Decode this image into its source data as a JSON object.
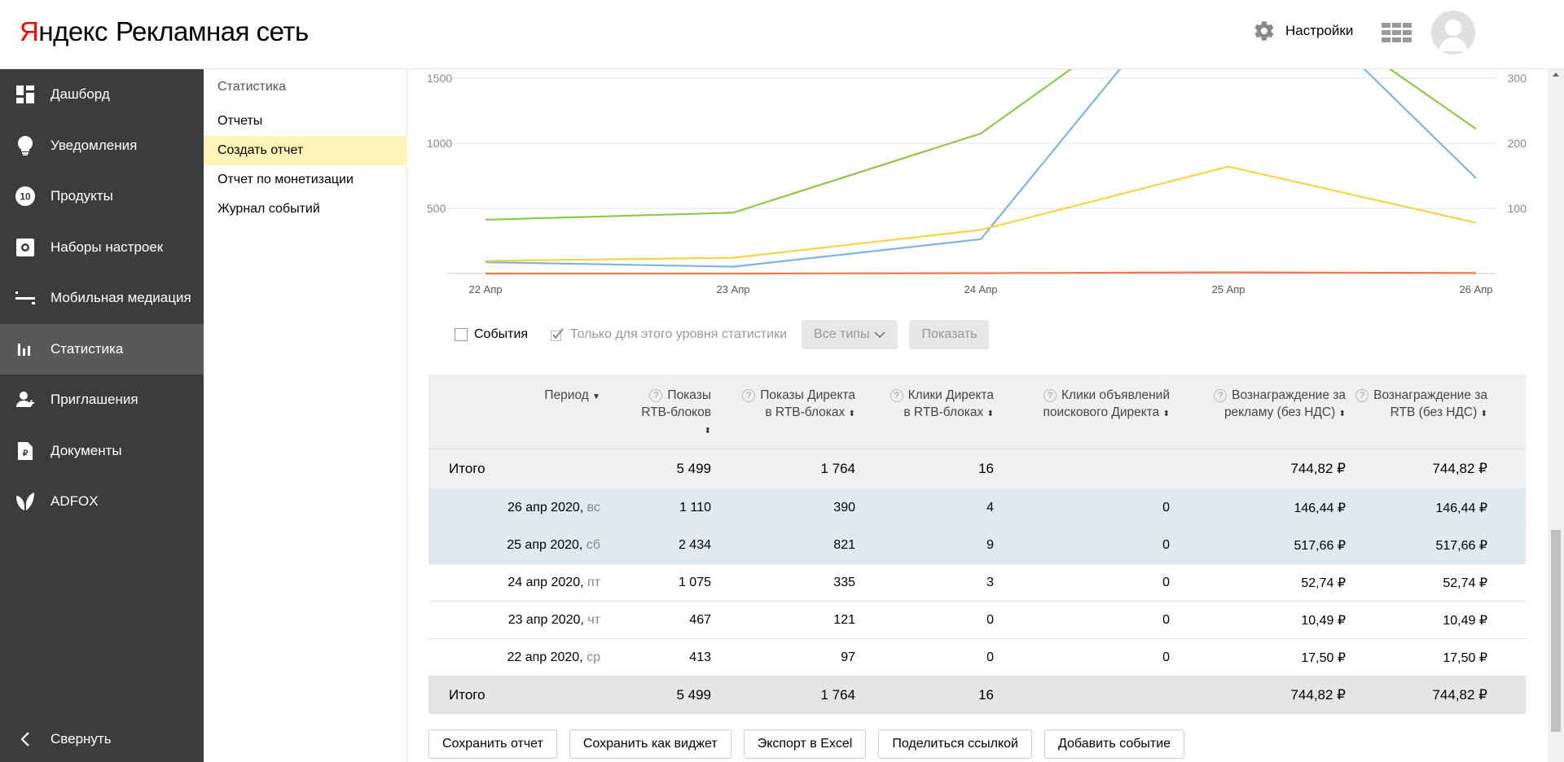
{
  "header": {
    "logo_brand": "Яндекс",
    "logo_product": "Рекламная сеть",
    "settings_label": "Настройки"
  },
  "sidebar": {
    "items": [
      {
        "label": "Дашборд",
        "icon": "dashboard-icon",
        "active": false
      },
      {
        "label": "Уведомления",
        "icon": "bulb-icon",
        "active": false
      },
      {
        "label": "Продукты",
        "icon": "products-icon",
        "active": false
      },
      {
        "label": "Наборы настроек",
        "icon": "settings-set-icon",
        "active": false
      },
      {
        "label": "Мобильная медиация",
        "icon": "mediation-icon",
        "active": false
      },
      {
        "label": "Статистика",
        "icon": "stats-icon",
        "active": true
      },
      {
        "label": "Приглашения",
        "icon": "invite-icon",
        "active": false
      },
      {
        "label": "Документы",
        "icon": "document-icon",
        "active": false
      },
      {
        "label": "ADFOX",
        "icon": "adfox-icon",
        "active": false
      }
    ],
    "products_badge": "10",
    "collapse_label": "Свернуть"
  },
  "subnav": {
    "title": "Статистика",
    "items": [
      {
        "label": "Отчеты",
        "active": false
      },
      {
        "label": "Создать отчет",
        "active": true
      },
      {
        "label": "Отчет по монетизации",
        "active": false
      },
      {
        "label": "Журнал событий",
        "active": false
      }
    ]
  },
  "chart_data": {
    "type": "line",
    "categories": [
      "22 Апр",
      "23 Апр",
      "24 Апр",
      "25 Апр",
      "26 Апр"
    ],
    "y_left_ticks": [
      "500",
      "1000",
      "1500"
    ],
    "y_right_ticks": [
      "100",
      "200",
      "300"
    ],
    "series": [
      {
        "color": "#8cc84b",
        "axis": "left",
        "values": [
          413,
          467,
          1075,
          2434,
          1110
        ]
      },
      {
        "color": "#7eb4e3",
        "axis": "right",
        "values": [
          17.5,
          10.49,
          52.74,
          517.66,
          146.44
        ]
      },
      {
        "color": "#f5d547",
        "axis": "left",
        "values": [
          97,
          121,
          335,
          821,
          390
        ]
      },
      {
        "color": "#e97b4e",
        "axis": "left",
        "values": [
          0,
          0,
          3,
          9,
          4
        ]
      }
    ],
    "ylim_left": [
      0,
      1600
    ],
    "ylim_right": [
      0,
      320
    ],
    "grid": true
  },
  "controls": {
    "events_label": "События",
    "level_only_label": "Только для этого уровня статистики",
    "types_label": "Все типы",
    "show_label": "Показать"
  },
  "table": {
    "headers": {
      "period": "Период",
      "rtb_shows": [
        "Показы",
        "RTB-блоков"
      ],
      "direct_shows": [
        "Показы Директа",
        "в RTB-блоках"
      ],
      "direct_clicks": [
        "Клики Директа",
        "в RTB-блоках"
      ],
      "search_clicks": [
        "Клики объявлений",
        "поискового Директа"
      ],
      "reward_ads": [
        "Вознаграждение за",
        "рекламу (без НДС)"
      ],
      "reward_rtb": [
        "Вознаграждение за",
        "RTB (без НДС)"
      ]
    },
    "total_label": "Итого",
    "totals": [
      "5 499",
      "1 764",
      "16",
      "",
      "744,82 ₽",
      "744,82 ₽"
    ],
    "rows": [
      {
        "date": "26 апр 2020,",
        "weekday": "вс",
        "values": [
          "1 110",
          "390",
          "4",
          "0",
          "146,44 ₽",
          "146,44 ₽"
        ],
        "highlight": true
      },
      {
        "date": "25 апр 2020,",
        "weekday": "сб",
        "values": [
          "2 434",
          "821",
          "9",
          "0",
          "517,66 ₽",
          "517,66 ₽"
        ],
        "highlight": true
      },
      {
        "date": "24 апр 2020,",
        "weekday": "пт",
        "values": [
          "1 075",
          "335",
          "3",
          "0",
          "52,74 ₽",
          "52,74 ₽"
        ],
        "highlight": false
      },
      {
        "date": "23 апр 2020,",
        "weekday": "чт",
        "values": [
          "467",
          "121",
          "0",
          "0",
          "10,49 ₽",
          "10,49 ₽"
        ],
        "highlight": false
      },
      {
        "date": "22 апр 2020,",
        "weekday": "ср",
        "values": [
          "413",
          "97",
          "0",
          "0",
          "17,50 ₽",
          "17,50 ₽"
        ],
        "highlight": false
      }
    ]
  },
  "actions": {
    "save_report": "Сохранить отчет",
    "save_widget": "Сохранить как виджет",
    "export_excel": "Экспорт в Excel",
    "share_link": "Поделиться ссылкой",
    "add_event": "Добавить событие"
  }
}
